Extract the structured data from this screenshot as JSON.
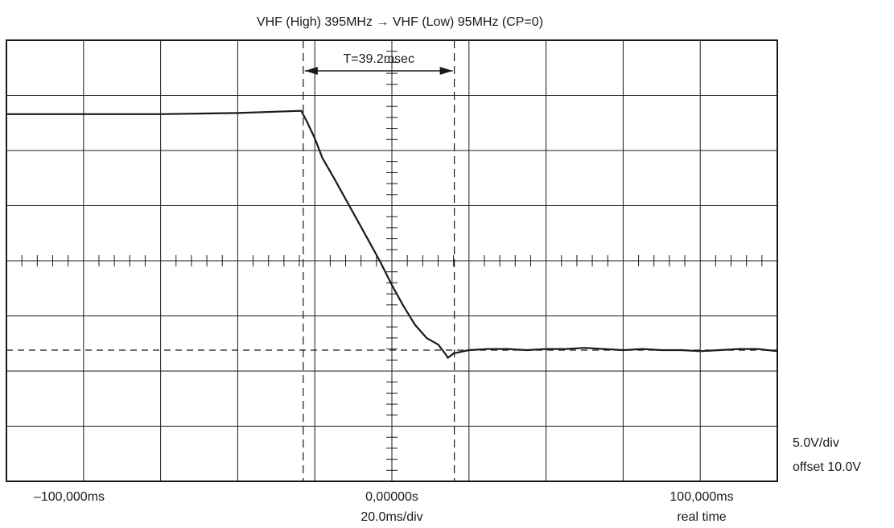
{
  "chart_data": {
    "type": "line",
    "title": "VHF (High) 395MHz → VHF (Low) 95MHz (CP=0)",
    "x_unit": "ms",
    "y_unit": "V",
    "x_range_ms": [
      -100,
      100
    ],
    "y_range_v": [
      -10,
      30
    ],
    "divisions": {
      "x": 10,
      "y": 8
    },
    "time_per_div": "20.0ms/div",
    "volts_per_div": "5.0V/div",
    "offset": "offset 10.0V",
    "bottom_labels": {
      "left": "–100,000ms",
      "center": "0,00000s",
      "right": "100,000ms",
      "mode": "real time"
    },
    "markers": {
      "t1_ms": -23,
      "t2_ms": 16.2,
      "delta_label": "T=39.2msec",
      "reference_level_v": 1.9
    },
    "series": [
      {
        "x": [
          -100,
          -80,
          -60,
          -40,
          -23.5,
          -22,
          -20,
          -18,
          -15,
          -12,
          -9,
          -6,
          -3,
          0,
          3,
          6,
          9,
          12,
          14,
          14.5,
          16,
          20,
          25,
          30,
          35,
          40,
          45,
          50,
          55,
          60,
          65,
          70,
          75,
          80,
          85,
          90,
          95,
          100
        ],
        "y": [
          23.3,
          23.3,
          23.3,
          23.4,
          23.6,
          22.6,
          21.1,
          19.3,
          17.5,
          15.6,
          13.7,
          11.8,
          9.9,
          7.8,
          5.9,
          4.2,
          3.0,
          2.4,
          1.5,
          1.2,
          1.6,
          1.9,
          2.0,
          2.0,
          1.9,
          2.0,
          2.0,
          2.1,
          2.0,
          1.9,
          2.0,
          1.9,
          1.9,
          1.8,
          1.9,
          2.0,
          2.0,
          1.8
        ]
      }
    ],
    "grid": true,
    "legend": "none"
  }
}
